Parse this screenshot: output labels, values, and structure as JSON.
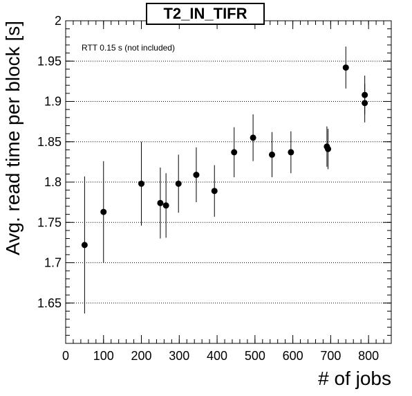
{
  "chart_data": {
    "type": "scatter",
    "title": "T2_IN_TIFR",
    "xlabel": "# of jobs",
    "ylabel": "Avg. read time per block [s]",
    "annotation": "RTT 0.15 s (not included)",
    "xlim": [
      0,
      860
    ],
    "ylim": [
      1.6,
      2.0
    ],
    "x_ticks": [
      0,
      100,
      200,
      300,
      400,
      500,
      600,
      700,
      800
    ],
    "y_ticks": [
      1.65,
      1.7,
      1.75,
      1.8,
      1.85,
      1.9,
      1.95,
      2.0
    ],
    "y_tick_labels": [
      "1.65",
      "1.7",
      "1.75",
      "1.8",
      "1.85",
      "1.9",
      "1.95",
      "2"
    ],
    "grid": "horizontal-dotted",
    "points": [
      {
        "x": 50,
        "y": 1.722,
        "err": 0.085
      },
      {
        "x": 100,
        "y": 1.763,
        "err": 0.063
      },
      {
        "x": 200,
        "y": 1.798,
        "err": 0.052
      },
      {
        "x": 250,
        "y": 1.774,
        "err": 0.044
      },
      {
        "x": 265,
        "y": 1.771,
        "err": 0.04
      },
      {
        "x": 298,
        "y": 1.798,
        "err": 0.036
      },
      {
        "x": 345,
        "y": 1.809,
        "err": 0.034
      },
      {
        "x": 393,
        "y": 1.789,
        "err": 0.032
      },
      {
        "x": 445,
        "y": 1.837,
        "err": 0.031
      },
      {
        "x": 495,
        "y": 1.855,
        "err": 0.029
      },
      {
        "x": 545,
        "y": 1.834,
        "err": 0.028
      },
      {
        "x": 595,
        "y": 1.837,
        "err": 0.026
      },
      {
        "x": 690,
        "y": 1.844,
        "err": 0.025
      },
      {
        "x": 693,
        "y": 1.841,
        "err": 0.025
      },
      {
        "x": 740,
        "y": 1.942,
        "err": 0.026
      },
      {
        "x": 790,
        "y": 1.908,
        "err": 0.024
      },
      {
        "x": 790,
        "y": 1.898,
        "err": 0.024
      }
    ]
  }
}
